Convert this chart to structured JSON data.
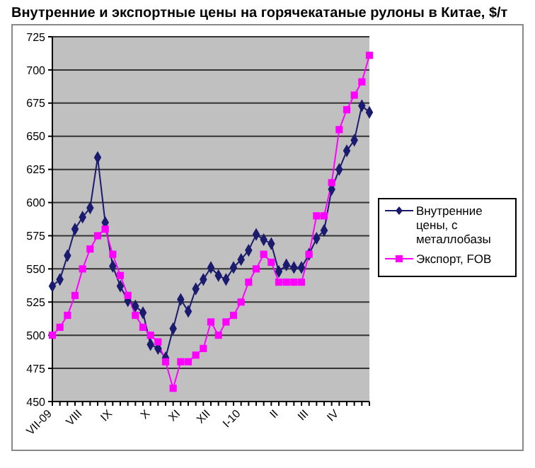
{
  "chart_data": {
    "type": "line",
    "title": "Внутренние и экспортные цены на горячекатаные рулоны в Китае, $/т",
    "categories": [
      "VII-09",
      null,
      null,
      null,
      "VIII",
      null,
      null,
      null,
      "IX",
      null,
      null,
      null,
      null,
      "X",
      null,
      null,
      null,
      "XI",
      null,
      null,
      null,
      "XII",
      null,
      null,
      null,
      "I-10",
      null,
      null,
      null,
      null,
      "II",
      null,
      null,
      null,
      "III",
      null,
      null,
      null,
      "IV",
      null,
      null,
      null,
      null
    ],
    "series": [
      {
        "name": "Внутренние цены, с металлобазы",
        "color": "#1a1a6e",
        "marker": "diamond",
        "values": [
          537,
          542,
          560,
          580,
          589,
          596,
          634,
          585,
          552,
          537,
          526,
          522,
          517,
          493,
          490,
          483,
          505,
          527,
          518,
          535,
          542,
          551,
          545,
          542,
          551,
          557,
          564,
          576,
          572,
          569,
          548,
          553,
          551,
          551,
          561,
          573,
          579,
          610,
          625,
          639,
          647,
          673,
          668
        ]
      },
      {
        "name": "Экспорт, FOB",
        "color": "#ff00ff",
        "marker": "square",
        "values": [
          500,
          506,
          515,
          530,
          550,
          565,
          575,
          580,
          561,
          545,
          530,
          515,
          506,
          500,
          495,
          480,
          460,
          480,
          480,
          485,
          490,
          510,
          500,
          510,
          515,
          525,
          540,
          550,
          561,
          555,
          540,
          540,
          540,
          540,
          561,
          590,
          590,
          615,
          655,
          670,
          681,
          691,
          711
        ]
      }
    ],
    "ylim": [
      450,
      725
    ],
    "yticks": [
      450,
      475,
      500,
      525,
      550,
      575,
      600,
      625,
      650,
      675,
      700,
      725
    ],
    "grid": "y",
    "legend": "right"
  }
}
